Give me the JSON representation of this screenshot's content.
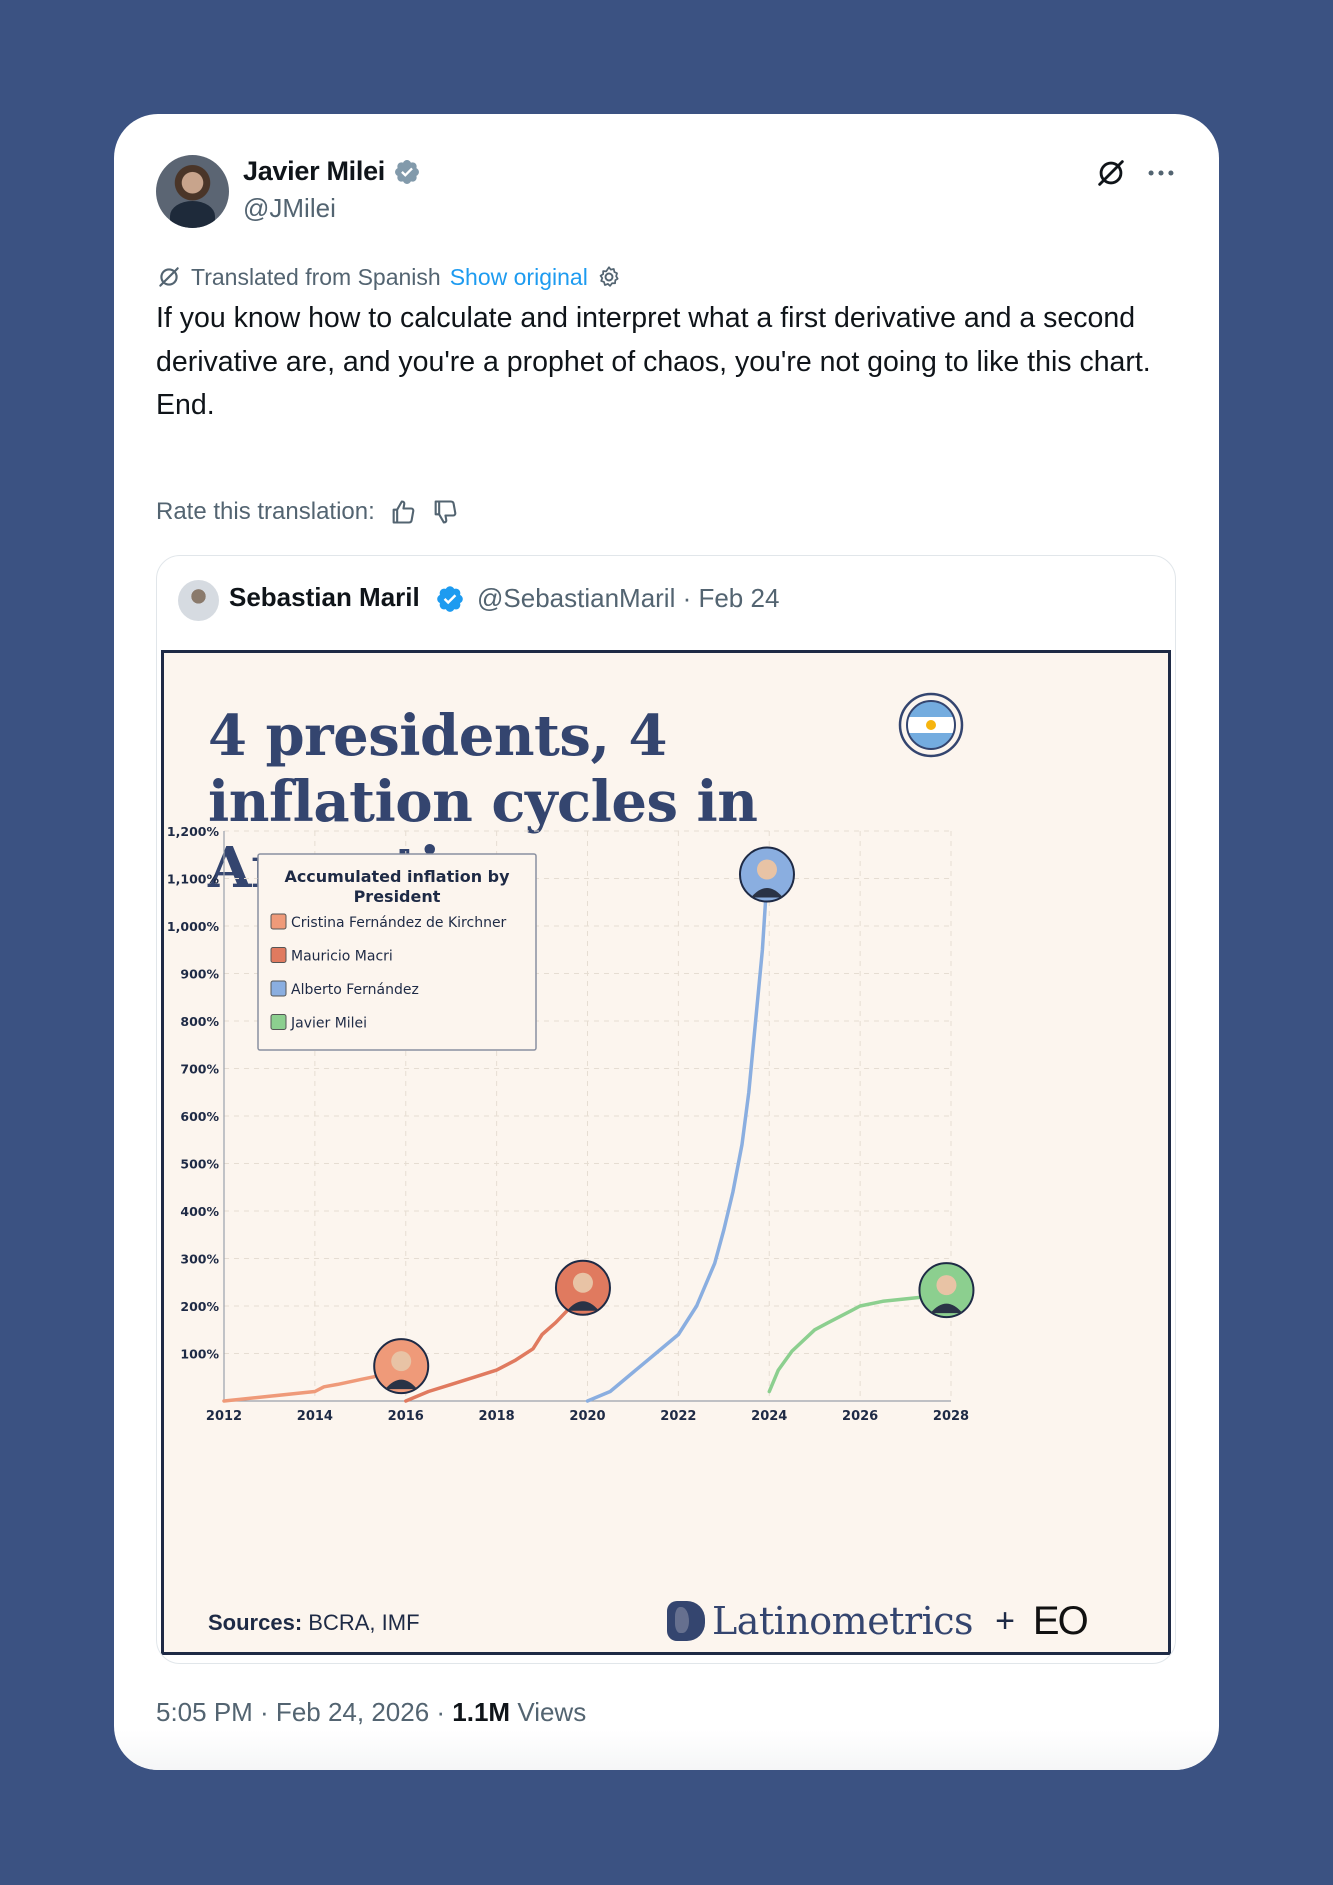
{
  "tweet": {
    "author_name": "Javier Milei",
    "author_handle": "@JMilei",
    "translated_label": "Translated from Spanish",
    "show_original_label": "Show original",
    "text": "If you know how to calculate and interpret what a first derivative and a second derivative are, and you're a prophet of chaos, you're not going to like this chart.\nEnd.",
    "rate_label": "Rate this translation:",
    "time": "5:05 PM · Feb 24, 2026 · ",
    "views_count": "1.1M",
    "views_label": " Views",
    "icons": [
      "verified-badge-gray",
      "grok-icon",
      "more-icon",
      "translate-icon",
      "gear-icon",
      "thumbs-up-icon",
      "thumbs-down-icon"
    ]
  },
  "quoted": {
    "author_name": "Sebastian Maril",
    "meta": "@SebastianMaril · Feb 24",
    "icons": [
      "verified-badge-blue"
    ]
  },
  "chart_data": {
    "type": "line",
    "title": "4 presidents, 4 inflation cycles in Argentina",
    "legend_title": "Accumulated inflation by President",
    "legend_position": "top-left",
    "sources_label": "Sources:",
    "sources_value": "BCRA, IMF",
    "brand": "Latinometrics",
    "brand_plus": "+",
    "brand_partner": "EO",
    "xlim": [
      2012,
      2028
    ],
    "x_ticks": [
      "2012",
      "2014",
      "2016",
      "2018",
      "2020",
      "2022",
      "2024",
      "2026",
      "2028"
    ],
    "ylim": [
      0,
      1200
    ],
    "y_ticks": [
      "100%",
      "200%",
      "300%",
      "400%",
      "500%",
      "600%",
      "700%",
      "800%",
      "900%",
      "1,000%",
      "1,100%",
      "1,200%"
    ],
    "grid": true,
    "series": [
      {
        "name": "Cristina Fernández de Kirchner",
        "color": "#ef9a79",
        "x": [
          2012,
          2013,
          2014,
          2014.2,
          2014.5,
          2015,
          2015.5,
          2015.9
        ],
        "y": [
          0,
          10,
          20,
          30,
          35,
          45,
          55,
          65
        ]
      },
      {
        "name": "Mauricio Macri",
        "color": "#e07a5f",
        "x": [
          2016,
          2016.5,
          2017,
          2017.5,
          2018,
          2018.4,
          2018.8,
          2019,
          2019.3,
          2019.6,
          2019.9
        ],
        "y": [
          0,
          20,
          35,
          50,
          65,
          85,
          110,
          140,
          165,
          195,
          230
        ]
      },
      {
        "name": "Alberto Fernández",
        "color": "#8aaee0",
        "x": [
          2020,
          2020.5,
          2021,
          2021.5,
          2022,
          2022.4,
          2022.8,
          2023,
          2023.2,
          2023.4,
          2023.55,
          2023.7,
          2023.85,
          2023.95
        ],
        "y": [
          0,
          20,
          60,
          100,
          140,
          200,
          290,
          360,
          440,
          540,
          650,
          800,
          950,
          1100
        ]
      },
      {
        "name": "Javier Milei",
        "color": "#8ccf8f",
        "x": [
          2024,
          2024.2,
          2024.5,
          2025,
          2025.3,
          2025.8,
          2026,
          2026.5,
          2027,
          2027.5,
          2027.9
        ],
        "y": [
          20,
          65,
          105,
          150,
          165,
          190,
          200,
          210,
          215,
          220,
          225
        ]
      }
    ]
  }
}
